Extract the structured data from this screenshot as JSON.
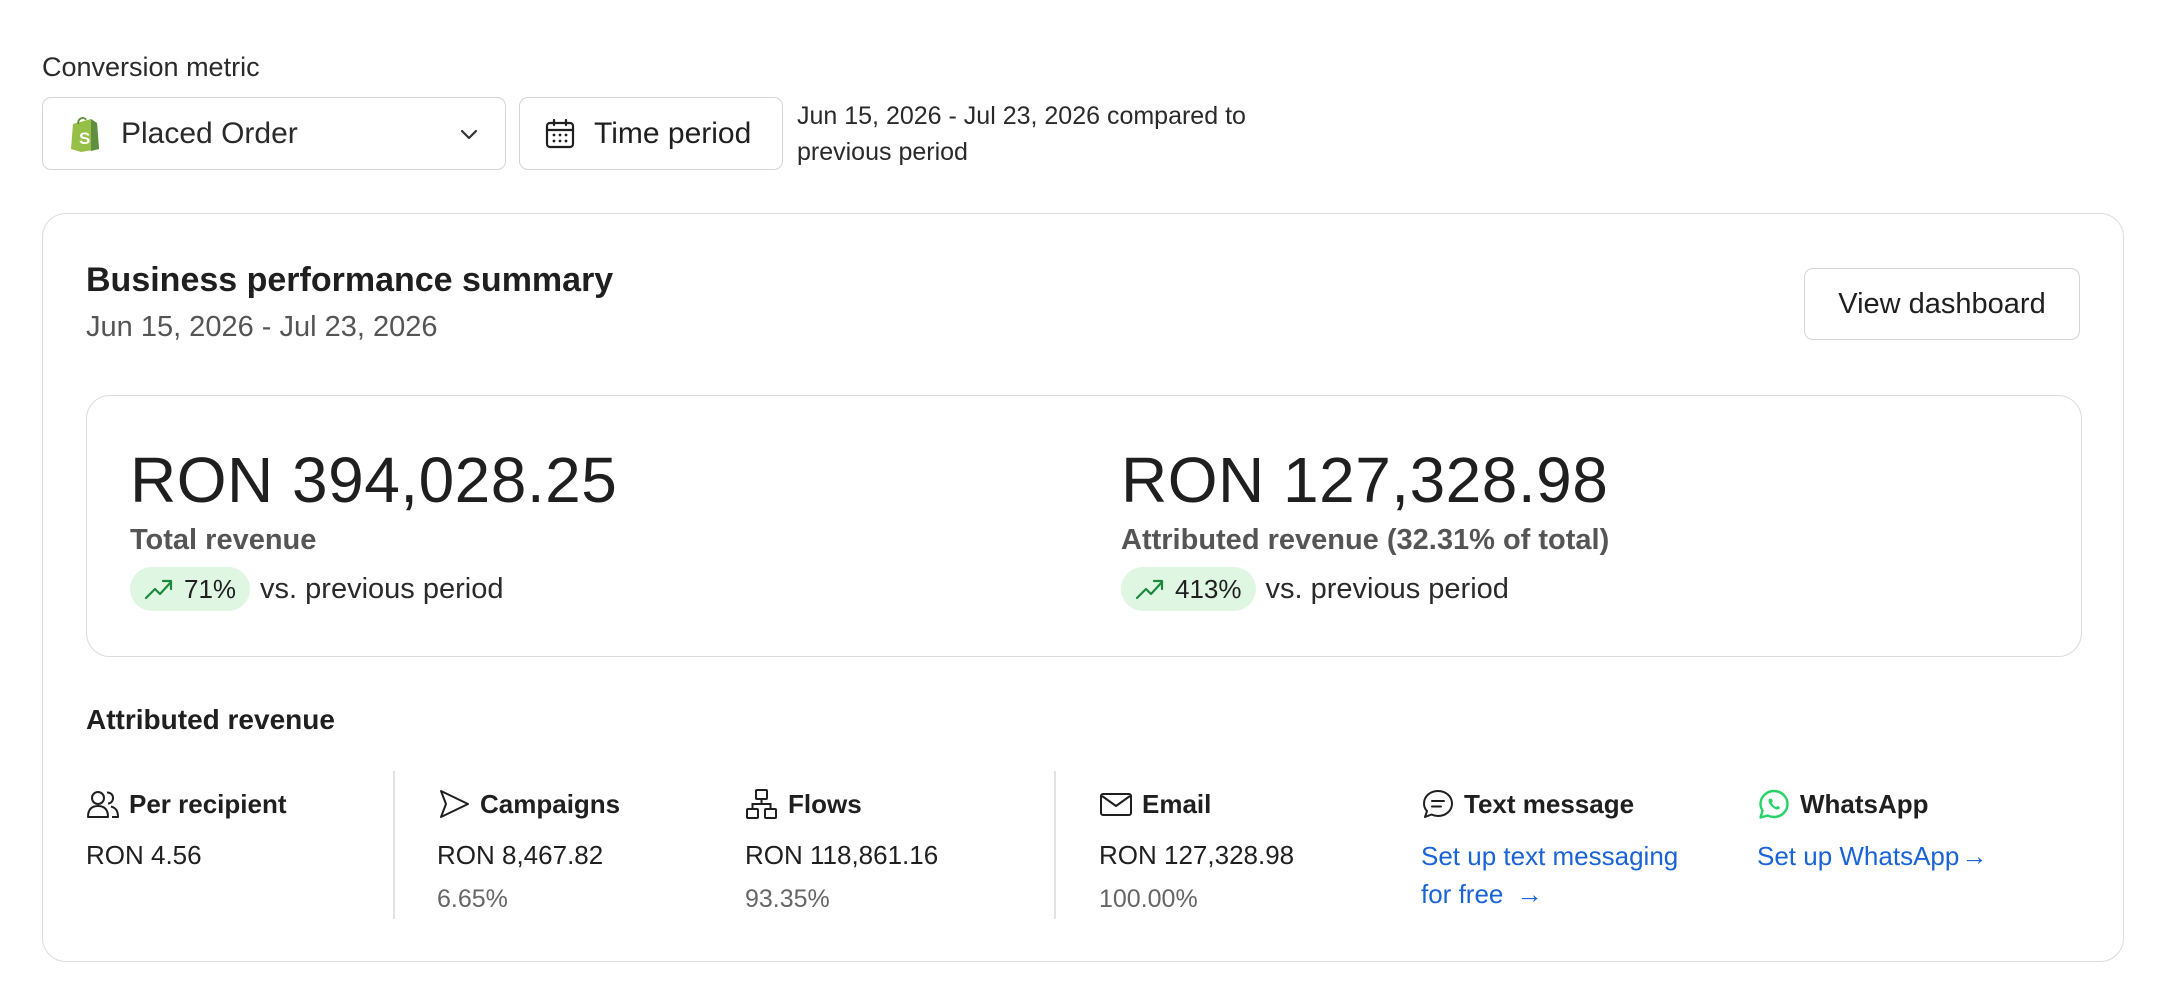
{
  "filters": {
    "metric_label": "Conversion metric",
    "metric_value": "Placed Order",
    "time_button": "Time period",
    "period_description": "Jun 15, 2026 - Jul 23, 2026 compared to previous period"
  },
  "summary": {
    "title": "Business performance summary",
    "date_range": "Jun 15, 2026 - Jul 23, 2026",
    "dashboard_button": "View dashboard",
    "total": {
      "value": "RON 394,028.25",
      "label": "Total revenue",
      "change": "71%",
      "comparison": "vs. previous period"
    },
    "attributed": {
      "value": "RON 127,328.98",
      "label": "Attributed revenue (32.31% of total)",
      "change": "413%",
      "comparison": "vs. previous period"
    }
  },
  "attributed_revenue": {
    "title": "Attributed revenue",
    "per_recipient": {
      "label": "Per recipient",
      "value": "RON 4.56",
      "icon": "users-icon"
    },
    "campaigns": {
      "label": "Campaigns",
      "value": "RON 8,467.82",
      "share": "6.65%",
      "icon": "send-icon"
    },
    "flows": {
      "label": "Flows",
      "value": "RON 118,861.16",
      "share": "93.35%",
      "icon": "flow-icon"
    },
    "email": {
      "label": "Email",
      "value": "RON 127,328.98",
      "share": "100.00%",
      "icon": "mail-icon"
    },
    "text_message": {
      "label": "Text message",
      "link_line1": "Set up text messaging",
      "link_line2": "for free",
      "arrow": "→",
      "icon": "chat-icon"
    },
    "whatsapp": {
      "label": "WhatsApp",
      "link": "Set up WhatsApp",
      "arrow": "→",
      "icon": "whatsapp-icon"
    }
  },
  "colors": {
    "trend_up_bg": "#dff6e3",
    "trend_up_icon": "#1a8a3a",
    "link": "#1a63d6",
    "whatsapp": "#25d366",
    "shopify": "#95bf47"
  }
}
